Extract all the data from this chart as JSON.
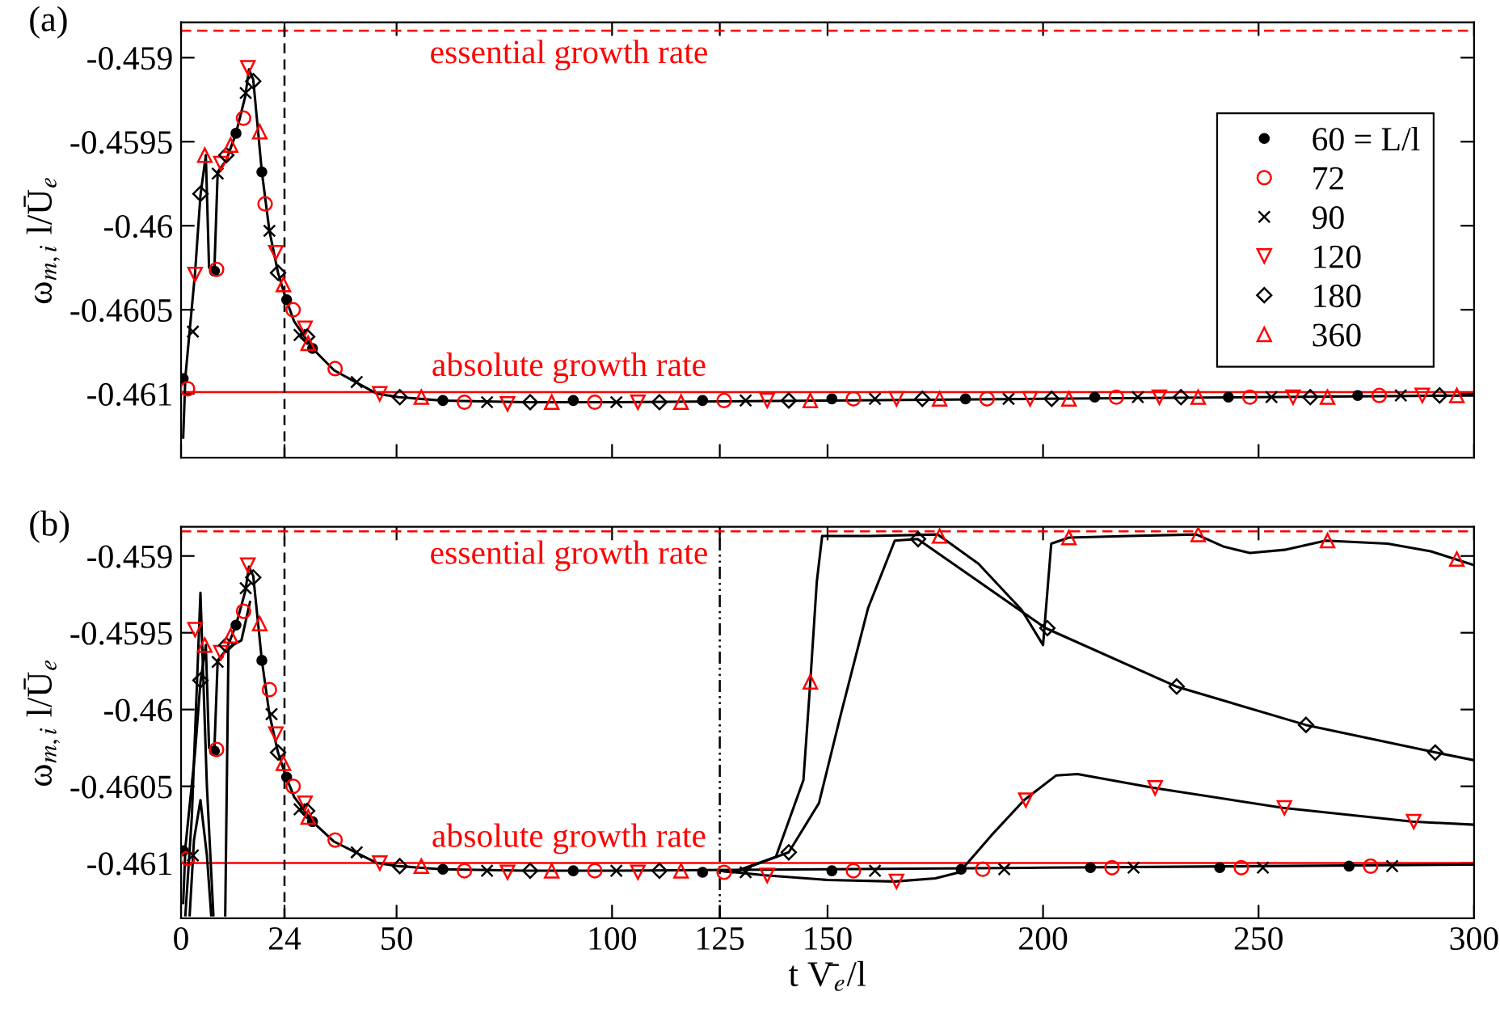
{
  "chart_data": [
    {
      "type": "line",
      "xlim": [
        0,
        300
      ],
      "xticks": [
        0,
        24,
        50,
        100,
        125,
        150,
        200,
        250,
        300
      ],
      "ylim": [
        -0.46138,
        -0.45879
      ],
      "yticks": [
        -0.459,
        -0.4595,
        -0.46,
        -0.4605,
        -0.461
      ],
      "ylabel": "ω$_{m,i}$ l/Ū$_{e}$",
      "tick_labels": "y",
      "legend": "right",
      "grid": false,
      "annotations": [
        "(a)"
      ],
      "ref_lines": [
        {
          "axis": "y",
          "value": -0.45884,
          "label": "essential growth rate",
          "color": "#ff0000",
          "line_style": "dashed"
        },
        {
          "axis": "y",
          "value": -0.46099,
          "label": "absolute growth rate",
          "color": "#ff0000",
          "line_style": "solid"
        },
        {
          "axis": "x",
          "value": 24,
          "color": "#000000",
          "line_style": "dashed"
        }
      ],
      "series": [
        {
          "type": "line",
          "color": "#000000",
          "marker": "none",
          "x": [
            0.5,
            1,
            3.25,
            4.5,
            5.75,
            6.5,
            7.75,
            8.5,
            10.5,
            12.75,
            14.9,
            15.75,
            16.75,
            18.75,
            20.5,
            22.5,
            24.25,
            26.25,
            30.5,
            35.5,
            40.5,
            45.5,
            50.5,
            60.5,
            80,
            100,
            150,
            200,
            250,
            300
          ],
          "values": [
            -0.46126,
            -0.4609,
            -0.46028,
            -0.45982,
            -0.45958,
            -0.46025,
            -0.46025,
            -0.45968,
            -0.45961,
            -0.45945,
            -0.45923,
            -0.45907,
            -0.45913,
            -0.45968,
            -0.46003,
            -0.46028,
            -0.46043,
            -0.46057,
            -0.46073,
            -0.46086,
            -0.46093,
            -0.461,
            -0.46102,
            -0.46104,
            -0.46105,
            -0.46105,
            -0.46104,
            -0.46103,
            -0.46102,
            -0.46101
          ]
        },
        {
          "type": "scatter",
          "name": "60 = L/l",
          "color": "#000000",
          "marker": "dot",
          "x": [
            0.5,
            7.75,
            12.75,
            18.75,
            24.5,
            30.5,
            60.75,
            91,
            121,
            151,
            182,
            212,
            243,
            273
          ],
          "values": [
            -0.46091,
            -0.46027,
            -0.45945,
            -0.45968,
            -0.46044,
            -0.46073,
            -0.46104,
            -0.46104,
            -0.46104,
            -0.46103,
            -0.46103,
            -0.46102,
            -0.46102,
            -0.46101
          ]
        },
        {
          "type": "scatter",
          "name": "72",
          "color": "#ff0000",
          "marker": "circle",
          "x": [
            1.5,
            8.25,
            14.5,
            19.5,
            26,
            35.75,
            65.75,
            96,
            126,
            156,
            187,
            217,
            248,
            278
          ],
          "values": [
            -0.46097,
            -0.46026,
            -0.45936,
            -0.45987,
            -0.4605,
            -0.46085,
            -0.46105,
            -0.46105,
            -0.46104,
            -0.46103,
            -0.46103,
            -0.46102,
            -0.46102,
            -0.46101
          ]
        },
        {
          "type": "scatter",
          "name": "90",
          "color": "#000000",
          "marker": "cross",
          "x": [
            2.75,
            8.5,
            15,
            20.5,
            27.5,
            40.75,
            71,
            101,
            131,
            161,
            192,
            222,
            253,
            283
          ],
          "values": [
            -0.46063,
            -0.45969,
            -0.45921,
            -0.46003,
            -0.46065,
            -0.46093,
            -0.46105,
            -0.46105,
            -0.46104,
            -0.46103,
            -0.46103,
            -0.46102,
            -0.46102,
            -0.46101
          ]
        },
        {
          "type": "scatter",
          "name": "120",
          "color": "#ff0000",
          "marker": "triangle_down",
          "x": [
            3.25,
            9.25,
            15.5,
            22,
            28.75,
            46.1,
            75.75,
            106,
            136,
            166,
            197,
            227,
            258,
            288
          ],
          "values": [
            -0.46029,
            -0.45963,
            -0.45906,
            -0.46016,
            -0.46061,
            -0.461,
            -0.46106,
            -0.46105,
            -0.46104,
            -0.46103,
            -0.46103,
            -0.46102,
            -0.46102,
            -0.46101
          ]
        },
        {
          "type": "scatter",
          "name": "180",
          "color": "#000000",
          "marker": "diamond",
          "x": [
            4.5,
            10.5,
            16.75,
            22.5,
            29.25,
            50.75,
            81,
            111,
            141,
            172,
            202,
            232,
            262,
            292
          ],
          "values": [
            -0.45981,
            -0.45958,
            -0.45914,
            -0.46028,
            -0.46066,
            -0.46102,
            -0.46105,
            -0.46105,
            -0.46104,
            -0.46103,
            -0.46103,
            -0.46102,
            -0.46102,
            -0.46101
          ]
        },
        {
          "type": "scatter",
          "name": "360",
          "color": "#ff0000",
          "marker": "triangle",
          "x": [
            5.5,
            11.5,
            18.25,
            23.75,
            29.5,
            55.75,
            86,
            116,
            146,
            176,
            206,
            236,
            266,
            296
          ],
          "values": [
            -0.45958,
            -0.45952,
            -0.45944,
            -0.46035,
            -0.4607,
            -0.46102,
            -0.46105,
            -0.46105,
            -0.46104,
            -0.46103,
            -0.46103,
            -0.46102,
            -0.46102,
            -0.46101
          ]
        }
      ]
    },
    {
      "type": "line",
      "xlim": [
        0,
        300
      ],
      "xticks": [
        0,
        24,
        50,
        100,
        125,
        150,
        200,
        250,
        300
      ],
      "ylim": [
        -0.46136,
        -0.45881
      ],
      "yticks": [
        -0.459,
        -0.4595,
        -0.46,
        -0.4605,
        -0.461
      ],
      "xlabel": "t V̄$_{e}$/l",
      "ylabel": "ω$_{m,i}$ l/Ū$_{e}$",
      "grid": false,
      "annotations": [
        "(b)"
      ],
      "ref_lines": [
        {
          "axis": "y",
          "value": -0.45884,
          "label": "essential growth rate",
          "color": "#ff0000",
          "line_style": "dashed"
        },
        {
          "axis": "y",
          "value": -0.461,
          "label": "absolute growth rate",
          "color": "#ff0000",
          "line_style": "solid"
        },
        {
          "axis": "x",
          "value": 24,
          "color": "#000000",
          "line_style": "dashed"
        },
        {
          "axis": "x",
          "value": 125,
          "color": "#000000",
          "line_style": "dashdot"
        }
      ],
      "series": [
        {
          "type": "line",
          "color": "#000000",
          "marker": "none",
          "x": [
            0.5,
            1,
            3.25,
            4.5,
            5.75,
            6.5,
            7.75,
            8.5,
            10.5,
            12.75,
            14.9,
            15.75,
            16.75,
            18.75,
            20.5,
            22.5,
            24.25,
            26.25,
            30.5,
            35.5,
            40.5,
            45.5,
            50.5,
            60.5,
            80,
            100,
            150,
            200,
            250,
            300
          ],
          "values": [
            -0.46126,
            -0.4609,
            -0.46028,
            -0.45982,
            -0.45958,
            -0.46025,
            -0.46025,
            -0.45968,
            -0.45961,
            -0.45945,
            -0.45923,
            -0.45907,
            -0.45913,
            -0.45968,
            -0.46003,
            -0.46028,
            -0.46043,
            -0.46057,
            -0.46073,
            -0.46086,
            -0.46093,
            -0.461,
            -0.46102,
            -0.46104,
            -0.46105,
            -0.46105,
            -0.46104,
            -0.46103,
            -0.46102,
            -0.46101
          ]
        },
        {
          "type": "line",
          "color": "#000000",
          "marker": "none",
          "x": [
            1,
            2.5,
            4.5,
            6,
            7.5
          ],
          "values": [
            -0.46134,
            -0.4607,
            -0.45924,
            -0.4605,
            -0.46134
          ]
        },
        {
          "type": "line",
          "color": "#000000",
          "marker": "none",
          "x": [
            2,
            3,
            4.5,
            6,
            7
          ],
          "values": [
            -0.46134,
            -0.46085,
            -0.46059,
            -0.46095,
            -0.46134
          ]
        },
        {
          "type": "line",
          "color": "#000000",
          "marker": "none",
          "x": [
            10.25,
            11,
            12,
            14,
            16
          ],
          "values": [
            -0.46134,
            -0.4596,
            -0.45958,
            -0.45955,
            -0.4593
          ]
        },
        {
          "type": "line",
          "color": "#000000",
          "marker": "none",
          "x": [
            125,
            128,
            138,
            144.4,
            146,
            147.5,
            148.75,
            160,
            175.6,
            185,
            195,
            200,
            201.9,
            206,
            220,
            235.6,
            242,
            248,
            256,
            265.6,
            280,
            290,
            300
          ],
          "values": [
            -0.46105,
            -0.46106,
            -0.46096,
            -0.46046,
            -0.45982,
            -0.45917,
            -0.45887,
            -0.45887,
            -0.45886,
            -0.45905,
            -0.45935,
            -0.45958,
            -0.45892,
            -0.45888,
            -0.45887,
            -0.45886,
            -0.45894,
            -0.45898,
            -0.45896,
            -0.4589,
            -0.45892,
            -0.45897,
            -0.45906
          ]
        },
        {
          "type": "line",
          "color": "#000000",
          "marker": "none",
          "x": [
            125,
            129.4,
            141,
            148,
            153,
            159.4,
            165.6,
            170.9,
            200.6,
            230.9,
            260.9,
            291.1,
            300
          ],
          "values": [
            -0.46105,
            -0.46105,
            -0.46093,
            -0.46061,
            -0.46004,
            -0.45934,
            -0.4589,
            -0.45889,
            -0.45947,
            -0.45985,
            -0.4601,
            -0.46028,
            -0.46033
          ]
        },
        {
          "type": "line",
          "color": "#000000",
          "marker": "none",
          "x": [
            125,
            135.6,
            150,
            165.6,
            175,
            180.6,
            188,
            195.6,
            203,
            208,
            225.6,
            255.6,
            285.6,
            300
          ],
          "values": [
            -0.46105,
            -0.46108,
            -0.46111,
            -0.46112,
            -0.4611,
            -0.46106,
            -0.46082,
            -0.46059,
            -0.46043,
            -0.46042,
            -0.46051,
            -0.46064,
            -0.46073,
            -0.46075
          ]
        },
        {
          "type": "scatter",
          "color": "#000000",
          "marker": "dot",
          "x": [
            0.5,
            7.75,
            12.75,
            18.75,
            24.5,
            30.5,
            60.75,
            91,
            121,
            151,
            181,
            211,
            241,
            271
          ],
          "values": [
            -0.46092,
            -0.46027,
            -0.45945,
            -0.45968,
            -0.46044,
            -0.46073,
            -0.46104,
            -0.46105,
            -0.46106,
            -0.46105,
            -0.46104,
            -0.46103,
            -0.46103,
            -0.46102
          ]
        },
        {
          "type": "scatter",
          "color": "#ff0000",
          "marker": "circle",
          "x": [
            1.5,
            8.25,
            14.5,
            20.5,
            26,
            35.75,
            65.75,
            96,
            126,
            156,
            186,
            216,
            246,
            276
          ],
          "values": [
            -0.46097,
            -0.46026,
            -0.45936,
            -0.45987,
            -0.4605,
            -0.46085,
            -0.46105,
            -0.46105,
            -0.46106,
            -0.46105,
            -0.46104,
            -0.46103,
            -0.46103,
            -0.46102
          ]
        },
        {
          "type": "scatter",
          "color": "#000000",
          "marker": "cross",
          "x": [
            2.75,
            8.5,
            15,
            21,
            27.5,
            40.75,
            71,
            101,
            131,
            161,
            191,
            221,
            251,
            281
          ],
          "values": [
            -0.46095,
            -0.45969,
            -0.45921,
            -0.46003,
            -0.46065,
            -0.46093,
            -0.46105,
            -0.46105,
            -0.46106,
            -0.46105,
            -0.46104,
            -0.46103,
            -0.46103,
            -0.46102
          ]
        },
        {
          "type": "scatter",
          "color": "#ff0000",
          "marker": "triangle_down",
          "x": [
            3.25,
            9.25,
            15.5,
            22,
            28.75,
            46.1,
            75.75,
            106,
            136,
            166,
            196,
            226,
            256,
            286
          ],
          "values": [
            -0.45948,
            -0.45963,
            -0.45906,
            -0.46016,
            -0.46061,
            -0.461,
            -0.46106,
            -0.46106,
            -0.46108,
            -0.46112,
            -0.46059,
            -0.46051,
            -0.46064,
            -0.46073
          ]
        },
        {
          "type": "scatter",
          "color": "#000000",
          "marker": "diamond",
          "x": [
            4.5,
            10.5,
            16.75,
            22.5,
            29.25,
            50.75,
            81,
            111,
            141,
            171,
            201,
            231,
            261,
            291
          ],
          "values": [
            -0.45981,
            -0.45958,
            -0.45914,
            -0.46028,
            -0.46066,
            -0.46102,
            -0.46105,
            -0.46105,
            -0.46093,
            -0.45889,
            -0.45947,
            -0.45985,
            -0.4601,
            -0.46028
          ]
        },
        {
          "type": "scatter",
          "color": "#ff0000",
          "marker": "triangle",
          "x": [
            5.5,
            11.5,
            18.25,
            23.75,
            29.5,
            55.75,
            86,
            116,
            146,
            176,
            206,
            236,
            266,
            296
          ],
          "values": [
            -0.45958,
            -0.45952,
            -0.45944,
            -0.46035,
            -0.4607,
            -0.46102,
            -0.46105,
            -0.46105,
            -0.45982,
            -0.45887,
            -0.45888,
            -0.45886,
            -0.4589,
            -0.45902
          ]
        }
      ]
    }
  ]
}
